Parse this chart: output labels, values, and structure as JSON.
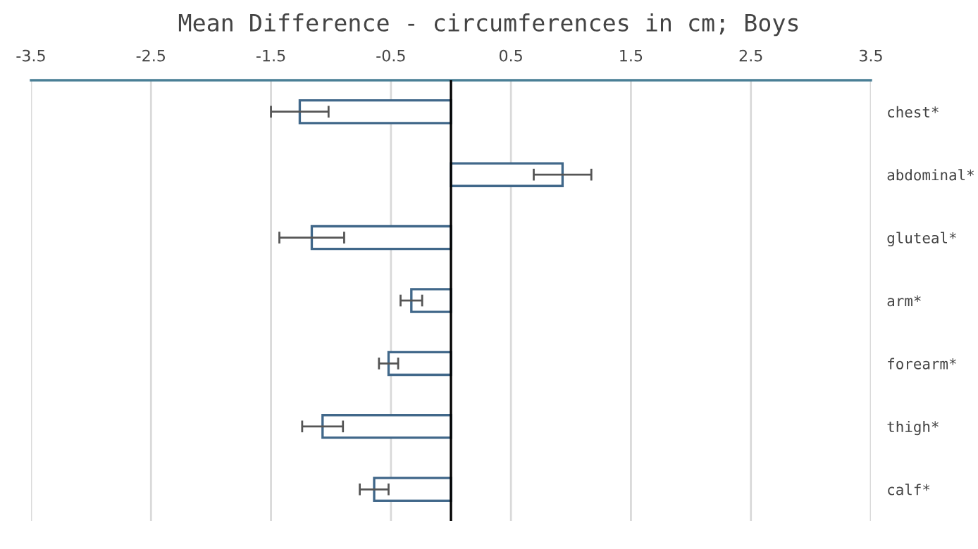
{
  "chart_data": {
    "type": "bar",
    "orientation": "horizontal",
    "title": "Mean Difference - circumferences in cm; Boys",
    "categories": [
      "chest*",
      "abdominal*",
      "gluteal*",
      "arm*",
      "forearm*",
      "thigh*",
      "calf*"
    ],
    "values": [
      -1.26,
      0.93,
      -1.16,
      -0.33,
      -0.52,
      -1.07,
      -0.64
    ],
    "errors": [
      0.24,
      0.24,
      0.27,
      0.09,
      0.08,
      0.17,
      0.12
    ],
    "color": "#41688a",
    "xlim": [
      -3.5,
      3.5
    ],
    "xticks": [
      -3.5,
      -2.5,
      -1.5,
      -0.5,
      0.5,
      1.5,
      2.5,
      3.5
    ],
    "grid": "x"
  }
}
